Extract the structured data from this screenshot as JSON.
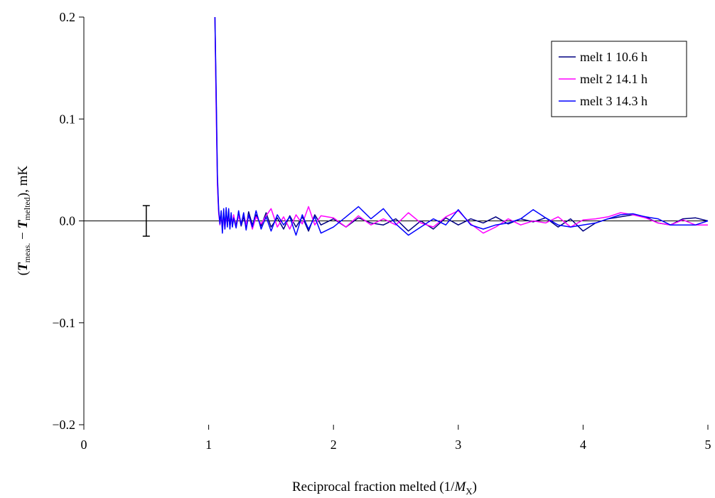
{
  "chart_data": {
    "type": "line",
    "xlim": [
      0,
      5
    ],
    "ylim": [
      -0.2,
      0.2
    ],
    "x_ticks": [
      0,
      1,
      2,
      3,
      4,
      5
    ],
    "x_tick_labels": [
      "0",
      "1",
      "2",
      "3",
      "4",
      "5"
    ],
    "y_ticks": [
      -0.2,
      -0.1,
      0.0,
      0.1,
      0.2
    ],
    "y_tick_labels": [
      "−0.2",
      "−0.1",
      "0.0",
      "0.1",
      "0.2"
    ],
    "xlabel": {
      "main": "Reciprocal fraction melted (1/",
      "italic": "M",
      "sub": "X",
      "close": ")"
    },
    "ylabel": {
      "open": "(",
      "t1": "T",
      "sub1": "meas.",
      "minus": " − ",
      "t2": "T",
      "sub2": "melted",
      "close": "), mK"
    },
    "grid": false,
    "legend_position": "top-right",
    "zero_line": true,
    "error_bar": {
      "x": 0.5,
      "y": 0.0,
      "err": 0.015
    },
    "series": [
      {
        "name": "melt 1 10.6 h",
        "color": "#000080",
        "x": [
          1.05,
          1.06,
          1.07,
          1.08,
          1.09,
          1.1,
          1.11,
          1.12,
          1.13,
          1.14,
          1.15,
          1.16,
          1.17,
          1.18,
          1.19,
          1.2,
          1.22,
          1.24,
          1.26,
          1.28,
          1.3,
          1.32,
          1.35,
          1.38,
          1.42,
          1.46,
          1.5,
          1.55,
          1.6,
          1.65,
          1.7,
          1.75,
          1.8,
          1.85,
          1.9,
          2.0,
          2.1,
          2.2,
          2.3,
          2.4,
          2.5,
          2.6,
          2.7,
          2.8,
          2.9,
          3.0,
          3.1,
          3.2,
          3.3,
          3.4,
          3.5,
          3.6,
          3.7,
          3.8,
          3.9,
          4.0,
          4.1,
          4.2,
          4.3,
          4.4,
          4.5,
          4.6,
          4.7,
          4.8,
          4.9,
          5.0
        ],
        "y": [
          0.2,
          0.12,
          0.04,
          0.01,
          -0.002,
          0.006,
          -0.008,
          0.009,
          -0.006,
          0.01,
          -0.004,
          0.008,
          -0.007,
          0.006,
          -0.005,
          0.004,
          -0.004,
          0.007,
          -0.005,
          0.004,
          -0.006,
          0.009,
          -0.004,
          0.006,
          -0.005,
          0.008,
          -0.006,
          0.003,
          -0.008,
          0.005,
          -0.006,
          0.004,
          -0.01,
          0.006,
          -0.004,
          0.002,
          -0.006,
          0.003,
          -0.002,
          -0.004,
          0.002,
          -0.01,
          0.0,
          -0.008,
          0.003,
          -0.004,
          0.002,
          -0.002,
          0.004,
          -0.003,
          0.002,
          -0.001,
          0.003,
          -0.006,
          0.002,
          -0.01,
          -0.002,
          0.002,
          0.004,
          0.006,
          0.004,
          -0.002,
          -0.004,
          0.002,
          0.003,
          0.0
        ]
      },
      {
        "name": "melt 2 14.1 h",
        "color": "#ff00ff",
        "x": [
          1.05,
          1.06,
          1.07,
          1.08,
          1.09,
          1.1,
          1.11,
          1.12,
          1.13,
          1.14,
          1.15,
          1.16,
          1.17,
          1.18,
          1.19,
          1.2,
          1.22,
          1.24,
          1.26,
          1.28,
          1.3,
          1.32,
          1.35,
          1.38,
          1.42,
          1.46,
          1.5,
          1.55,
          1.6,
          1.65,
          1.7,
          1.75,
          1.8,
          1.85,
          1.9,
          2.0,
          2.1,
          2.2,
          2.3,
          2.4,
          2.5,
          2.6,
          2.7,
          2.8,
          2.9,
          3.0,
          3.1,
          3.2,
          3.3,
          3.4,
          3.5,
          3.6,
          3.7,
          3.8,
          3.9,
          4.0,
          4.1,
          4.2,
          4.3,
          4.4,
          4.5,
          4.6,
          4.7,
          4.8,
          4.9,
          5.0
        ],
        "y": [
          0.2,
          0.11,
          0.035,
          0.008,
          -0.004,
          0.007,
          -0.006,
          0.005,
          -0.008,
          0.006,
          -0.003,
          0.007,
          -0.006,
          0.004,
          -0.004,
          0.006,
          -0.006,
          0.005,
          -0.003,
          0.007,
          -0.004,
          0.006,
          -0.008,
          0.004,
          -0.003,
          0.005,
          0.012,
          -0.006,
          0.004,
          -0.008,
          0.006,
          -0.003,
          0.014,
          -0.004,
          0.005,
          0.003,
          -0.006,
          0.005,
          -0.004,
          0.002,
          -0.004,
          0.008,
          -0.002,
          -0.006,
          0.004,
          0.01,
          -0.003,
          -0.012,
          -0.006,
          0.002,
          -0.004,
          0.0,
          -0.002,
          0.004,
          -0.006,
          0.001,
          0.002,
          0.004,
          0.008,
          0.006,
          0.003,
          -0.002,
          -0.004,
          0.001,
          -0.004,
          -0.004
        ]
      },
      {
        "name": "melt 3 14.3 h",
        "color": "#0000ff",
        "x": [
          1.05,
          1.06,
          1.07,
          1.08,
          1.09,
          1.1,
          1.11,
          1.12,
          1.13,
          1.14,
          1.15,
          1.16,
          1.17,
          1.18,
          1.19,
          1.2,
          1.22,
          1.24,
          1.26,
          1.28,
          1.3,
          1.32,
          1.35,
          1.38,
          1.42,
          1.46,
          1.5,
          1.55,
          1.6,
          1.65,
          1.7,
          1.75,
          1.8,
          1.85,
          1.9,
          2.0,
          2.1,
          2.2,
          2.3,
          2.4,
          2.5,
          2.6,
          2.7,
          2.8,
          2.9,
          3.0,
          3.1,
          3.2,
          3.3,
          3.4,
          3.5,
          3.6,
          3.7,
          3.8,
          3.9,
          4.0,
          4.1,
          4.2,
          4.3,
          4.4,
          4.5,
          4.6,
          4.7,
          4.8,
          4.9,
          5.0
        ],
        "y": [
          0.2,
          0.13,
          0.045,
          0.012,
          -0.003,
          0.01,
          -0.012,
          0.012,
          -0.008,
          0.013,
          -0.006,
          0.012,
          -0.008,
          0.008,
          -0.006,
          0.003,
          -0.007,
          0.01,
          -0.004,
          0.008,
          -0.009,
          0.006,
          -0.006,
          0.01,
          -0.008,
          0.004,
          -0.01,
          0.006,
          -0.004,
          0.004,
          -0.014,
          0.006,
          -0.008,
          0.004,
          -0.012,
          -0.006,
          0.004,
          0.014,
          0.002,
          0.012,
          -0.003,
          -0.014,
          -0.006,
          0.002,
          -0.004,
          0.011,
          -0.004,
          -0.008,
          -0.004,
          -0.002,
          0.002,
          0.011,
          0.003,
          -0.004,
          -0.006,
          -0.004,
          -0.002,
          0.002,
          0.006,
          0.007,
          0.004,
          0.002,
          -0.004,
          -0.004,
          -0.004,
          0.0
        ]
      }
    ]
  }
}
